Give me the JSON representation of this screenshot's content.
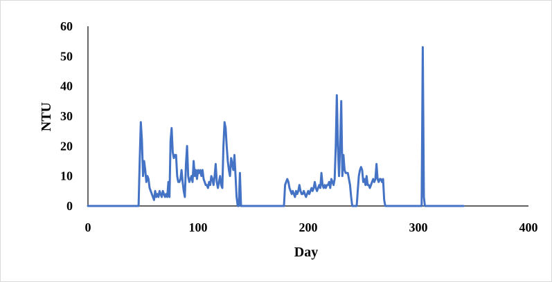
{
  "chart_data": {
    "type": "line",
    "title": "",
    "xlabel": "Day",
    "ylabel": "NTU",
    "xlim": [
      0,
      400
    ],
    "ylim": [
      0,
      60
    ],
    "x_ticks": [
      0,
      100,
      200,
      300,
      400
    ],
    "y_ticks": [
      0,
      10,
      20,
      30,
      40,
      50,
      60
    ],
    "grid": false,
    "legend": "none",
    "series": [
      {
        "color": "#4472c4",
        "points": [
          [
            0,
            0
          ],
          [
            46,
            0
          ],
          [
            47,
            15
          ],
          [
            48,
            28
          ],
          [
            49,
            22
          ],
          [
            50,
            10
          ],
          [
            51,
            15
          ],
          [
            52,
            12
          ],
          [
            53,
            8
          ],
          [
            54,
            10
          ],
          [
            55,
            9
          ],
          [
            56,
            6
          ],
          [
            57,
            5
          ],
          [
            58,
            4
          ],
          [
            59,
            3
          ],
          [
            60,
            2
          ],
          [
            61,
            5
          ],
          [
            62,
            3
          ],
          [
            63,
            4
          ],
          [
            64,
            3
          ],
          [
            65,
            5
          ],
          [
            66,
            4
          ],
          [
            67,
            3
          ],
          [
            68,
            5
          ],
          [
            69,
            4
          ],
          [
            70,
            3
          ],
          [
            71,
            4
          ],
          [
            72,
            3
          ],
          [
            73,
            8
          ],
          [
            74,
            3
          ],
          [
            75,
            22
          ],
          [
            76,
            26
          ],
          [
            77,
            18
          ],
          [
            78,
            16
          ],
          [
            79,
            17
          ],
          [
            80,
            17
          ],
          [
            81,
            10
          ],
          [
            82,
            8
          ],
          [
            83,
            8
          ],
          [
            84,
            9
          ],
          [
            85,
            12
          ],
          [
            86,
            8
          ],
          [
            87,
            5
          ],
          [
            88,
            3
          ],
          [
            89,
            14
          ],
          [
            90,
            20
          ],
          [
            91,
            10
          ],
          [
            92,
            8
          ],
          [
            93,
            9
          ],
          [
            94,
            10
          ],
          [
            95,
            8
          ],
          [
            96,
            15
          ],
          [
            97,
            10
          ],
          [
            98,
            12
          ],
          [
            99,
            9
          ],
          [
            100,
            12
          ],
          [
            101,
            11
          ],
          [
            102,
            12
          ],
          [
            103,
            10
          ],
          [
            104,
            12
          ],
          [
            105,
            9
          ],
          [
            106,
            8
          ],
          [
            107,
            7
          ],
          [
            108,
            7
          ],
          [
            109,
            6
          ],
          [
            110,
            8
          ],
          [
            111,
            7
          ],
          [
            112,
            10
          ],
          [
            113,
            9
          ],
          [
            114,
            7
          ],
          [
            115,
            10
          ],
          [
            116,
            14
          ],
          [
            117,
            8
          ],
          [
            118,
            6
          ],
          [
            119,
            8
          ],
          [
            120,
            10
          ],
          [
            121,
            7
          ],
          [
            122,
            6
          ],
          [
            123,
            20
          ],
          [
            124,
            28
          ],
          [
            125,
            26
          ],
          [
            126,
            20
          ],
          [
            127,
            15
          ],
          [
            128,
            12
          ],
          [
            129,
            10
          ],
          [
            130,
            16
          ],
          [
            131,
            14
          ],
          [
            132,
            12
          ],
          [
            133,
            17
          ],
          [
            134,
            10
          ],
          [
            135,
            3
          ],
          [
            136,
            0
          ],
          [
            137,
            0
          ],
          [
            138,
            11
          ],
          [
            139,
            0
          ],
          [
            177,
            0
          ],
          [
            178,
            0
          ],
          [
            179,
            7
          ],
          [
            180,
            8
          ],
          [
            181,
            9
          ],
          [
            182,
            8
          ],
          [
            183,
            6
          ],
          [
            184,
            5
          ],
          [
            185,
            4
          ],
          [
            186,
            5
          ],
          [
            187,
            4
          ],
          [
            188,
            3
          ],
          [
            189,
            5
          ],
          [
            190,
            4
          ],
          [
            191,
            5
          ],
          [
            192,
            7
          ],
          [
            193,
            5
          ],
          [
            194,
            4
          ],
          [
            195,
            4
          ],
          [
            196,
            5
          ],
          [
            197,
            4
          ],
          [
            198,
            3
          ],
          [
            199,
            4
          ],
          [
            200,
            5
          ],
          [
            201,
            4
          ],
          [
            202,
            5
          ],
          [
            203,
            6
          ],
          [
            204,
            5
          ],
          [
            205,
            6
          ],
          [
            206,
            8
          ],
          [
            207,
            6
          ],
          [
            208,
            5
          ],
          [
            209,
            6
          ],
          [
            210,
            7
          ],
          [
            211,
            6
          ],
          [
            212,
            11
          ],
          [
            213,
            7
          ],
          [
            214,
            6
          ],
          [
            215,
            7
          ],
          [
            216,
            6
          ],
          [
            217,
            7
          ],
          [
            218,
            7
          ],
          [
            219,
            8
          ],
          [
            220,
            6
          ],
          [
            221,
            9
          ],
          [
            222,
            8
          ],
          [
            223,
            7
          ],
          [
            224,
            9
          ],
          [
            225,
            20
          ],
          [
            226,
            37
          ],
          [
            227,
            20
          ],
          [
            228,
            10
          ],
          [
            229,
            20
          ],
          [
            230,
            35
          ],
          [
            231,
            10
          ],
          [
            232,
            17
          ],
          [
            233,
            12
          ],
          [
            234,
            11
          ],
          [
            235,
            11
          ],
          [
            236,
            11
          ],
          [
            237,
            9
          ],
          [
            238,
            7
          ],
          [
            239,
            3
          ],
          [
            240,
            0
          ],
          [
            244,
            0
          ],
          [
            245,
            5
          ],
          [
            246,
            10
          ],
          [
            247,
            12
          ],
          [
            248,
            13
          ],
          [
            249,
            12
          ],
          [
            250,
            8
          ],
          [
            251,
            9
          ],
          [
            252,
            7
          ],
          [
            253,
            10
          ],
          [
            254,
            7
          ],
          [
            255,
            7
          ],
          [
            256,
            6
          ],
          [
            257,
            7
          ],
          [
            258,
            8
          ],
          [
            259,
            9
          ],
          [
            260,
            8
          ],
          [
            261,
            9
          ],
          [
            262,
            14
          ],
          [
            263,
            9
          ],
          [
            264,
            8
          ],
          [
            265,
            9
          ],
          [
            266,
            9
          ],
          [
            267,
            8
          ],
          [
            268,
            9
          ],
          [
            269,
            2
          ],
          [
            270,
            0
          ],
          [
            303,
            0
          ],
          [
            304,
            53
          ],
          [
            305,
            3
          ],
          [
            306,
            0
          ],
          [
            341,
            0
          ]
        ]
      }
    ]
  }
}
